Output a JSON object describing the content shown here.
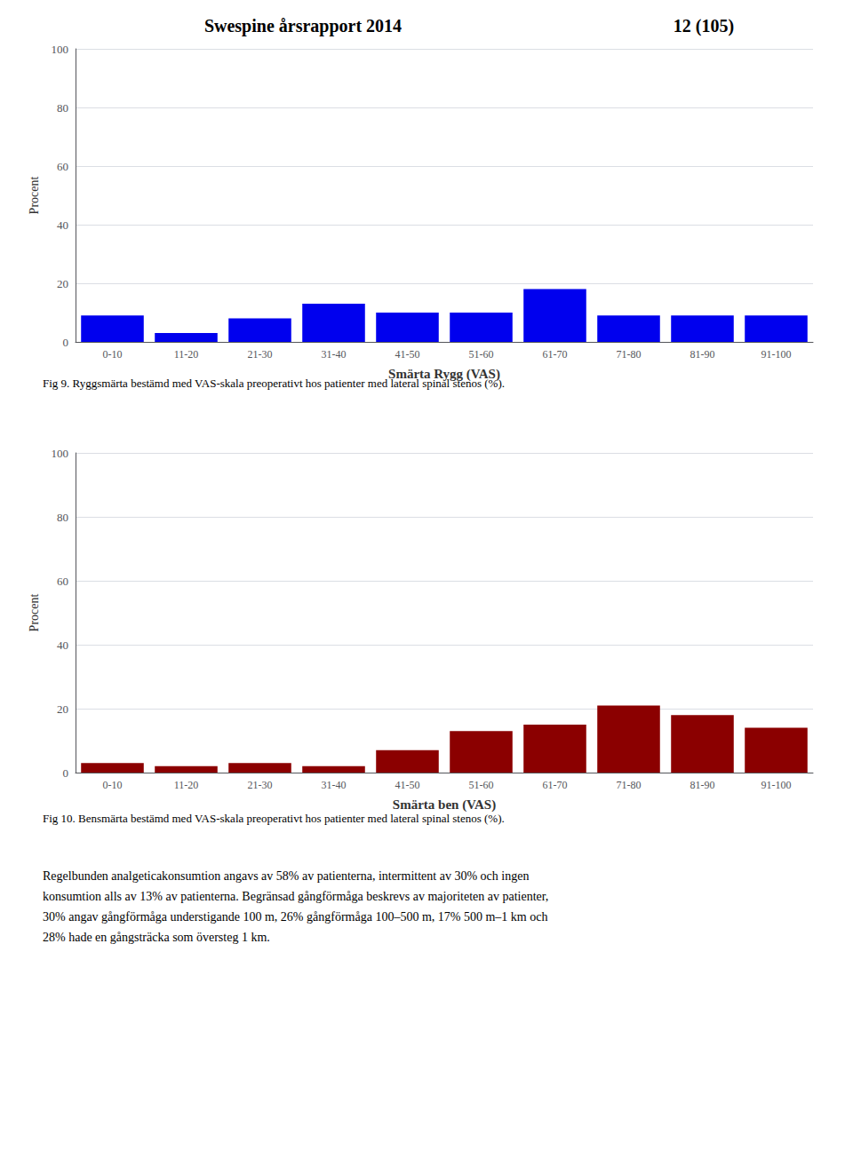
{
  "title": "Swespine årsrapport 2014",
  "subtitle": "12 (105)",
  "annotations": [
    "Regelbunden analgeticakonsumtion angavs av 58% av patienterna, intermittent av 30% och ingen\nkonsumtion alls av 13% av patienterna. Begränsad gångförmåga beskrevs av majoriteten av patienter,\n30% angav gångförmåga understigande 100 m, 26% gångförmåga 100–500 m, 17% 500 m–1 km och\n28% hade en gångsträcka som översteg 1 km."
  ],
  "chart_data": [
    {
      "type": "bar",
      "categories": [
        "0-10",
        "11-20",
        "21-30",
        "31-40",
        "41-50",
        "51-60",
        "61-70",
        "71-80",
        "81-90",
        "91-100"
      ],
      "values": [
        9,
        3,
        8,
        13,
        10,
        10,
        18,
        9,
        9,
        9
      ],
      "color": "#0000EE",
      "xlabel": "Smärta Rygg (VAS)",
      "ylabel": "Procent",
      "ylim": [
        0,
        100
      ],
      "yticks": [
        0,
        20,
        40,
        60,
        80,
        100
      ],
      "grid": true,
      "annotations": [
        "Fig 9. Ryggsmärta bestämd med VAS-skala preoperativt hos patienter med lateral spinal stenos (%)."
      ]
    },
    {
      "type": "bar",
      "categories": [
        "0-10",
        "11-20",
        "21-30",
        "31-40",
        "41-50",
        "51-60",
        "61-70",
        "71-80",
        "81-90",
        "91-100"
      ],
      "values": [
        3,
        2,
        3,
        2,
        7,
        13,
        15,
        21,
        18,
        14
      ],
      "color": "#8B0000",
      "xlabel": "Smärta ben (VAS)",
      "ylabel": "Procent",
      "ylim": [
        0,
        100
      ],
      "yticks": [
        0,
        20,
        40,
        60,
        80,
        100
      ],
      "grid": true,
      "annotations": [
        "Fig 10. Bensmärta bestämd med VAS-skala preoperativt hos patienter med lateral spinal stenos (%)."
      ]
    }
  ]
}
